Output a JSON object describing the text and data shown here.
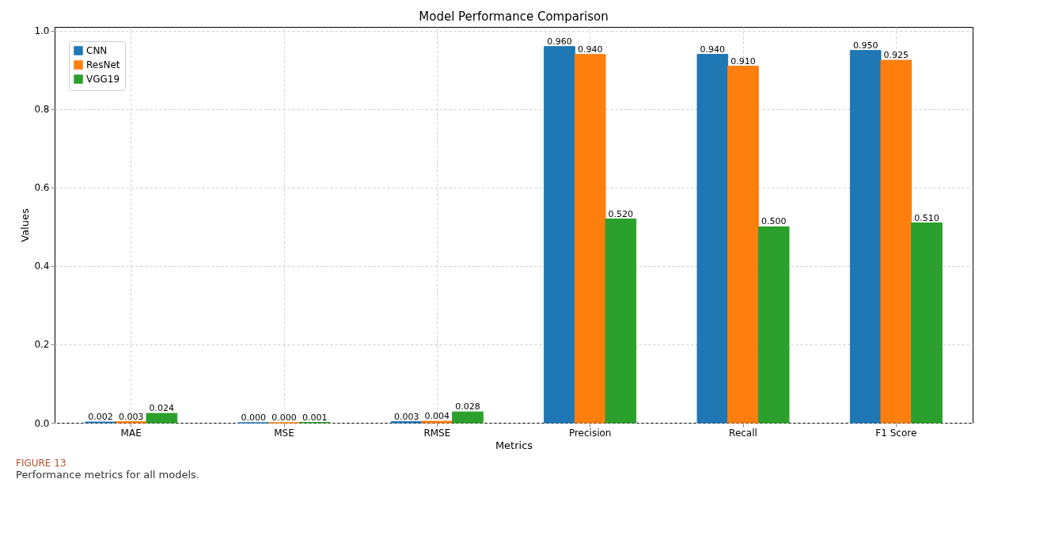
{
  "chart_data": {
    "type": "bar",
    "title": "Model Performance Comparison",
    "xlabel": "Metrics",
    "ylabel": "Values",
    "categories": [
      "MAE",
      "MSE",
      "RMSE",
      "Precision",
      "Recall",
      "F1 Score"
    ],
    "series": [
      {
        "name": "CNN",
        "color": "#1f77b4",
        "values": [
          0.002,
          0.0,
          0.003,
          0.96,
          0.94,
          0.95
        ],
        "value_labels": [
          "0.002",
          "0.000",
          "0.003",
          "0.960",
          "0.940",
          "0.950"
        ]
      },
      {
        "name": "ResNet",
        "color": "#ff7f0e",
        "values": [
          0.003,
          0.0,
          0.004,
          0.94,
          0.91,
          0.925
        ],
        "value_labels": [
          "0.003",
          "0.000",
          "0.004",
          "0.940",
          "0.910",
          "0.925"
        ]
      },
      {
        "name": "VGG19",
        "color": "#2ca02c",
        "values": [
          0.024,
          0.001,
          0.028,
          0.52,
          0.5,
          0.51
        ],
        "value_labels": [
          "0.024",
          "0.001",
          "0.028",
          "0.520",
          "0.500",
          "0.510"
        ]
      }
    ],
    "ylim": [
      0,
      1.01
    ],
    "yticks": [
      {
        "value": 0,
        "label": "0.0"
      },
      {
        "value": 0.2,
        "label": "0.2"
      },
      {
        "value": 0.4,
        "label": "0.4"
      },
      {
        "value": 0.6,
        "label": "0.6"
      },
      {
        "value": 0.8,
        "label": "0.8"
      },
      {
        "value": 1,
        "label": "1.0"
      }
    ],
    "grid": true,
    "legend": "top left",
    "annotations": [
      "FIGURE 13",
      "Performance metrics for all models."
    ]
  }
}
